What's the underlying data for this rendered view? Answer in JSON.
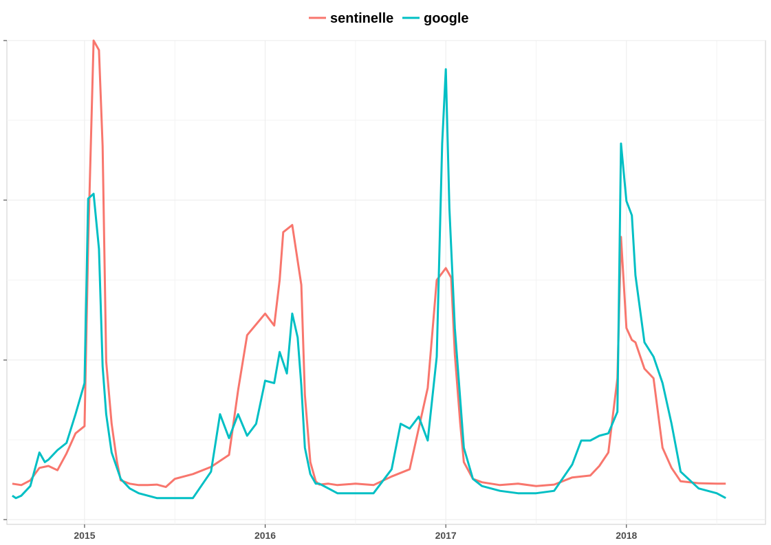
{
  "chart_data": {
    "type": "line",
    "title": "",
    "xlabel": "",
    "ylabel": "",
    "x_range": [
      2014.57,
      2018.77
    ],
    "y_range": [
      -0.01,
      1.0
    ],
    "x_ticks": [
      2015,
      2016,
      2017,
      2018
    ],
    "x_tick_labels": [
      "2015",
      "2016",
      "2017",
      "2018"
    ],
    "y_ticks_unlabeled": [
      0,
      0.333,
      0.667,
      1.0
    ],
    "grid": true,
    "legend_position": "top",
    "series": [
      {
        "name": "sentinelle",
        "color": "#F8766D",
        "x": [
          2014.6,
          2014.65,
          2014.7,
          2014.75,
          2014.8,
          2014.85,
          2014.9,
          2014.95,
          2015.0,
          2015.02,
          2015.05,
          2015.08,
          2015.1,
          2015.12,
          2015.15,
          2015.18,
          2015.2,
          2015.25,
          2015.3,
          2015.35,
          2015.4,
          2015.45,
          2015.5,
          2015.6,
          2015.7,
          2015.8,
          2015.85,
          2015.9,
          2016.0,
          2016.05,
          2016.08,
          2016.1,
          2016.15,
          2016.2,
          2016.22,
          2016.25,
          2016.28,
          2016.3,
          2016.35,
          2016.4,
          2016.5,
          2016.6,
          2016.7,
          2016.8,
          2016.9,
          2016.95,
          2016.98,
          2017.0,
          2017.03,
          2017.05,
          2017.08,
          2017.1,
          2017.15,
          2017.2,
          2017.3,
          2017.4,
          2017.5,
          2017.6,
          2017.7,
          2017.8,
          2017.85,
          2017.9,
          2017.95,
          2017.97,
          2018.0,
          2018.03,
          2018.05,
          2018.1,
          2018.15,
          2018.2,
          2018.25,
          2018.3,
          2018.4,
          2018.5,
          2018.55
        ],
        "y": [
          0.075,
          0.072,
          0.082,
          0.108,
          0.112,
          0.103,
          0.138,
          0.18,
          0.195,
          0.575,
          1.0,
          0.98,
          0.78,
          0.33,
          0.2,
          0.12,
          0.082,
          0.075,
          0.072,
          0.072,
          0.073,
          0.068,
          0.085,
          0.095,
          0.11,
          0.135,
          0.27,
          0.385,
          0.43,
          0.405,
          0.5,
          0.6,
          0.615,
          0.49,
          0.26,
          0.12,
          0.08,
          0.073,
          0.075,
          0.072,
          0.075,
          0.072,
          0.09,
          0.105,
          0.275,
          0.5,
          0.515,
          0.525,
          0.505,
          0.345,
          0.2,
          0.12,
          0.085,
          0.078,
          0.072,
          0.075,
          0.07,
          0.073,
          0.088,
          0.092,
          0.112,
          0.14,
          0.295,
          0.59,
          0.4,
          0.375,
          0.37,
          0.315,
          0.295,
          0.15,
          0.108,
          0.08,
          0.076,
          0.075,
          0.075
        ],
        "note_y_scale": "normalized 0-1 (axis unlabeled)"
      },
      {
        "name": "google",
        "color": "#00BFC4",
        "x": [
          2014.6,
          2014.62,
          2014.65,
          2014.7,
          2014.75,
          2014.78,
          2014.8,
          2014.85,
          2014.9,
          2014.95,
          2015.0,
          2015.02,
          2015.05,
          2015.08,
          2015.1,
          2015.12,
          2015.15,
          2015.2,
          2015.25,
          2015.3,
          2015.4,
          2015.5,
          2015.6,
          2015.7,
          2015.75,
          2015.8,
          2015.85,
          2015.9,
          2015.95,
          2016.0,
          2016.05,
          2016.08,
          2016.12,
          2016.15,
          2016.18,
          2016.2,
          2016.22,
          2016.25,
          2016.28,
          2016.3,
          2016.35,
          2016.4,
          2016.5,
          2016.6,
          2016.7,
          2016.75,
          2016.8,
          2016.85,
          2016.9,
          2016.95,
          2016.98,
          2017.0,
          2017.02,
          2017.05,
          2017.08,
          2017.1,
          2017.15,
          2017.2,
          2017.3,
          2017.4,
          2017.5,
          2017.6,
          2017.7,
          2017.75,
          2017.8,
          2017.85,
          2017.9,
          2017.95,
          2017.97,
          2018.0,
          2018.03,
          2018.05,
          2018.1,
          2018.15,
          2018.2,
          2018.25,
          2018.3,
          2018.4,
          2018.5,
          2018.55
        ],
        "y": [
          0.05,
          0.045,
          0.05,
          0.07,
          0.14,
          0.12,
          0.125,
          0.145,
          0.16,
          0.22,
          0.285,
          0.67,
          0.68,
          0.565,
          0.32,
          0.22,
          0.14,
          0.085,
          0.065,
          0.055,
          0.045,
          0.045,
          0.045,
          0.1,
          0.22,
          0.17,
          0.22,
          0.175,
          0.2,
          0.29,
          0.285,
          0.35,
          0.305,
          0.43,
          0.38,
          0.28,
          0.15,
          0.095,
          0.075,
          0.075,
          0.065,
          0.055,
          0.055,
          0.055,
          0.105,
          0.2,
          0.19,
          0.215,
          0.165,
          0.34,
          0.785,
          0.94,
          0.65,
          0.4,
          0.25,
          0.15,
          0.085,
          0.07,
          0.06,
          0.055,
          0.055,
          0.06,
          0.115,
          0.165,
          0.165,
          0.175,
          0.18,
          0.225,
          0.785,
          0.665,
          0.635,
          0.51,
          0.37,
          0.34,
          0.285,
          0.2,
          0.1,
          0.065,
          0.055,
          0.045
        ],
        "note_y_scale": "normalized 0-1 (axis unlabeled)"
      }
    ]
  },
  "legend": {
    "items": [
      {
        "label": "sentinelle",
        "color": "#F8766D"
      },
      {
        "label": "google",
        "color": "#00BFC4"
      }
    ]
  },
  "x_axis": {
    "ticks": [
      {
        "label": "2015"
      },
      {
        "label": "2016"
      },
      {
        "label": "2017"
      },
      {
        "label": "2018"
      }
    ]
  }
}
